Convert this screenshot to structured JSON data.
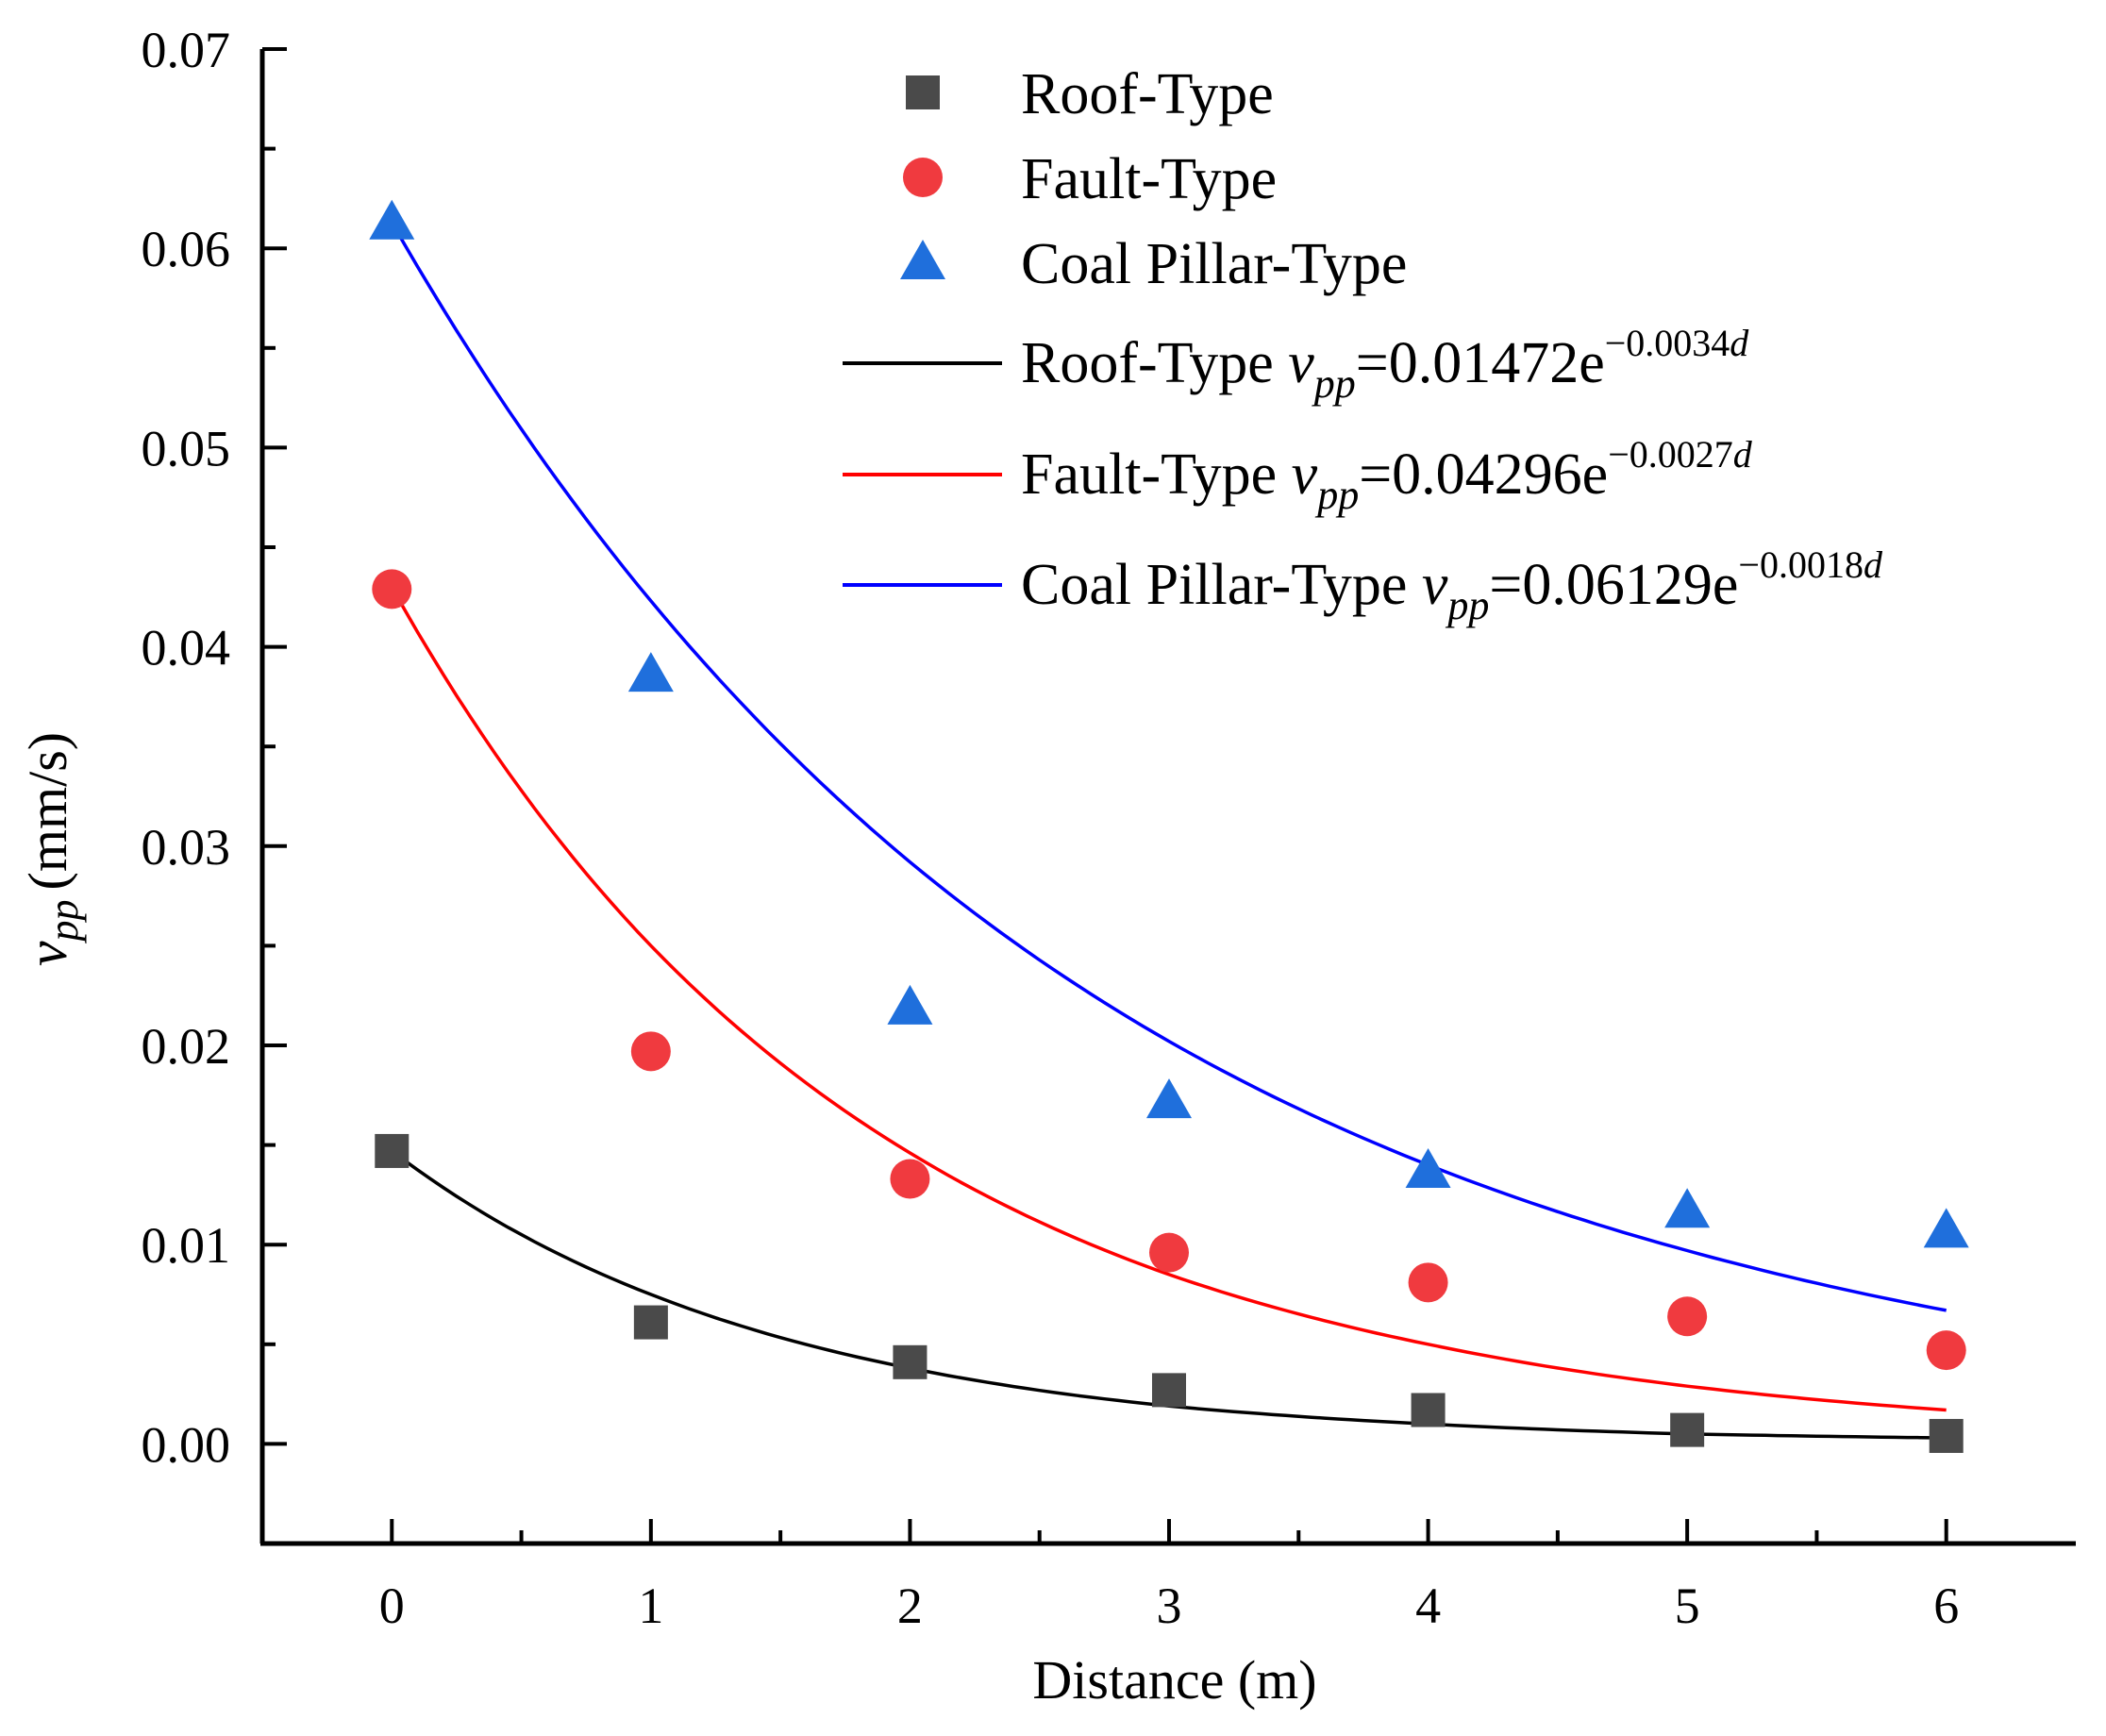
{
  "chart_data": {
    "type": "scatter",
    "title": "",
    "xlabel": "Distance (m)",
    "ylabel": {
      "symbol": "v",
      "subscript": "pp",
      "units": "(mm/s)"
    },
    "xlim": [
      -0.5,
      6.5
    ],
    "ylim": [
      -0.005,
      0.07
    ],
    "x_ticks": [
      0,
      1,
      2,
      3,
      4,
      5,
      6
    ],
    "x_tick_labels": [
      "0",
      "1",
      "2",
      "3",
      "4",
      "5",
      "6"
    ],
    "y_ticks": [
      0.0,
      0.01,
      0.02,
      0.03,
      0.04,
      0.05,
      0.06,
      0.07
    ],
    "y_tick_labels": [
      "0.00",
      "0.01",
      "0.02",
      "0.03",
      "0.04",
      "0.05",
      "0.06",
      "0.07"
    ],
    "grid": false,
    "legend_position": "top-right",
    "x": [
      0,
      1,
      2,
      3,
      4,
      5,
      6
    ],
    "series": [
      {
        "name": "Roof-Type",
        "kind": "points",
        "marker": "square",
        "color": "#4a4a4a",
        "values": [
          0.0147,
          0.0061,
          0.0041,
          0.0027,
          0.0017,
          0.0007,
          0.0004
        ]
      },
      {
        "name": "Fault-Type",
        "kind": "points",
        "marker": "circle",
        "color": "#f03a3f",
        "values": [
          0.0429,
          0.0197,
          0.0133,
          0.0096,
          0.0081,
          0.0064,
          0.0047
        ]
      },
      {
        "name": "Coal Pillar-Type",
        "kind": "points",
        "marker": "triangle",
        "color": "#1f6fdc",
        "values": [
          0.0613,
          0.0386,
          0.0219,
          0.0172,
          0.0137,
          0.0117,
          0.0107
        ]
      }
    ],
    "fits": [
      {
        "name": "Roof-Type",
        "color": "#000000",
        "label": "Roof-Type",
        "eq_lhs": "v",
        "eq_sub": "pp",
        "eq_body": "=0.01472e",
        "eq_exp": "−0.0034",
        "eq_exp_var": "d",
        "values": [
          0.0147,
          0.0075,
          0.0038,
          0.0019,
          0.001,
          0.0005,
          0.0003
        ]
      },
      {
        "name": "Fault-Type",
        "color": "#ff0000",
        "label": "Fault-Type",
        "eq_lhs": "v",
        "eq_sub": "pp",
        "eq_body": "=0.04296e",
        "eq_exp": "−0.0027",
        "eq_exp_var": "d",
        "values": [
          0.043,
          0.025,
          0.0146,
          0.0085,
          0.005,
          0.0029,
          0.0017
        ]
      },
      {
        "name": "Coal Pillar-Type",
        "color": "#0000ff",
        "label": "Coal Pillar-Type",
        "eq_lhs": "v",
        "eq_sub": "pp",
        "eq_body": "=0.06129e",
        "eq_exp": "−0.0018",
        "eq_exp_var": "d",
        "values": [
          0.0613,
          0.0423,
          0.0292,
          0.0202,
          0.014,
          0.0097,
          0.0067
        ]
      }
    ]
  }
}
